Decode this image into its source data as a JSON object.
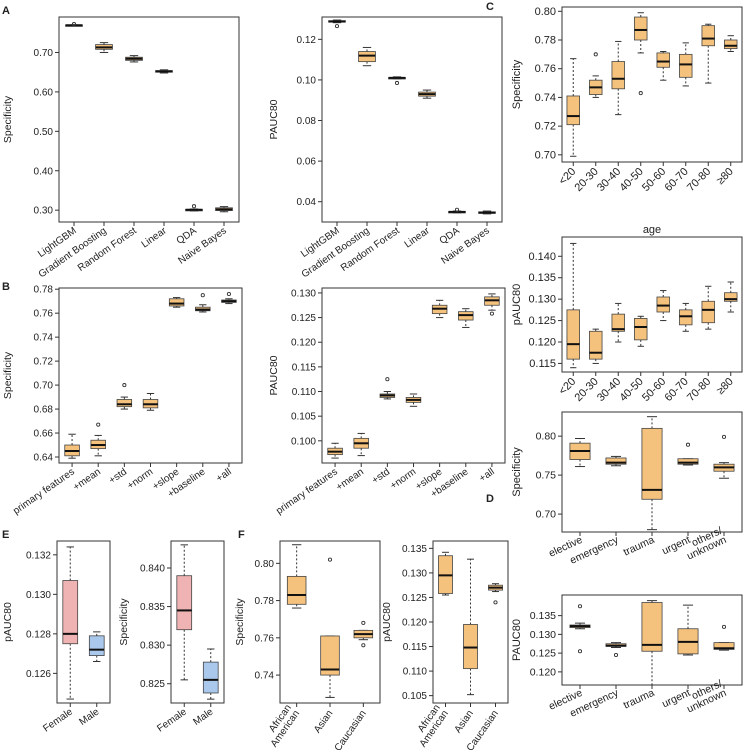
{
  "colors": {
    "box_orange": "#f5c27d",
    "box_pink": "#f0b3b3",
    "box_blue": "#a9c8ec",
    "frame": "#333333",
    "median": "#111111"
  },
  "panel_letters": {
    "A": "A",
    "B": "B",
    "C": "C",
    "D": "D",
    "E": "E",
    "F": "F"
  },
  "chart_data": [
    {
      "id": "A1",
      "type": "box",
      "panel": "A",
      "ylabel": "Specificity",
      "ylim": [
        0.27,
        0.79
      ],
      "yticks": [
        0.3,
        0.4,
        0.5,
        0.6,
        0.7
      ],
      "ytick_labels": [
        "0.30",
        "0.40",
        "0.50",
        "0.60",
        "0.70"
      ],
      "categories": [
        "LightGBM",
        "Gradient Boosting",
        "Random Forest",
        "Linear",
        "QDA",
        "Naive Bayes"
      ],
      "boxes": [
        {
          "min": 0.768,
          "q1": 0.768,
          "median": 0.769,
          "q3": 0.77,
          "max": 0.77,
          "outliers": [
            0.772
          ]
        },
        {
          "min": 0.7,
          "q1": 0.708,
          "median": 0.713,
          "q3": 0.72,
          "max": 0.725,
          "outliers": []
        },
        {
          "min": 0.676,
          "q1": 0.68,
          "median": 0.684,
          "q3": 0.688,
          "max": 0.692,
          "outliers": []
        },
        {
          "min": 0.648,
          "q1": 0.65,
          "median": 0.652,
          "q3": 0.654,
          "max": 0.656,
          "outliers": []
        },
        {
          "min": 0.298,
          "q1": 0.3,
          "median": 0.301,
          "q3": 0.302,
          "max": 0.303,
          "outliers": [
            0.31
          ]
        },
        {
          "min": 0.296,
          "q1": 0.299,
          "median": 0.302,
          "q3": 0.306,
          "max": 0.309,
          "outliers": []
        }
      ]
    },
    {
      "id": "A2",
      "type": "box",
      "panel": "A",
      "ylabel": "PAUC80",
      "ylim": [
        0.03,
        0.131
      ],
      "yticks": [
        0.04,
        0.06,
        0.08,
        0.1,
        0.12
      ],
      "ytick_labels": [
        "0.04",
        "0.06",
        "0.08",
        "0.10",
        "0.12"
      ],
      "categories": [
        "LightGBM",
        "Gradient Boosting",
        "Random Forest",
        "Linear",
        "QDA",
        "Naive Bayes"
      ],
      "boxes": [
        {
          "min": 0.1282,
          "q1": 0.1285,
          "median": 0.1288,
          "q3": 0.1292,
          "max": 0.1295,
          "outliers": [
            0.1265
          ]
        },
        {
          "min": 0.107,
          "q1": 0.109,
          "median": 0.112,
          "q3": 0.114,
          "max": 0.116,
          "outliers": []
        },
        {
          "min": 0.1005,
          "q1": 0.1008,
          "median": 0.101,
          "q3": 0.1012,
          "max": 0.1015,
          "outliers": [
            0.0985
          ]
        },
        {
          "min": 0.091,
          "q1": 0.092,
          "median": 0.093,
          "q3": 0.094,
          "max": 0.095,
          "outliers": []
        },
        {
          "min": 0.0345,
          "q1": 0.0348,
          "median": 0.035,
          "q3": 0.0352,
          "max": 0.0354,
          "outliers": [
            0.036
          ]
        },
        {
          "min": 0.034,
          "q1": 0.0343,
          "median": 0.0346,
          "q3": 0.035,
          "max": 0.0354,
          "outliers": []
        }
      ]
    },
    {
      "id": "B1",
      "type": "box",
      "panel": "B",
      "ylabel": "Specificity",
      "ylim": [
        0.635,
        0.781
      ],
      "yticks": [
        0.64,
        0.66,
        0.68,
        0.7,
        0.72,
        0.74,
        0.76,
        0.78
      ],
      "ytick_labels": [
        "0.64",
        "0.66",
        "0.68",
        "0.70",
        "0.72",
        "0.74",
        "0.76",
        "0.78"
      ],
      "categories": [
        "primary features",
        "+mean",
        "+std",
        "+norm",
        "+slope",
        "+baseline",
        "+all"
      ],
      "boxes": [
        {
          "min": 0.639,
          "q1": 0.641,
          "median": 0.645,
          "q3": 0.65,
          "max": 0.659,
          "outliers": []
        },
        {
          "min": 0.641,
          "q1": 0.647,
          "median": 0.65,
          "q3": 0.654,
          "max": 0.658,
          "outliers": [
            0.667
          ]
        },
        {
          "min": 0.68,
          "q1": 0.682,
          "median": 0.684,
          "q3": 0.688,
          "max": 0.69,
          "outliers": [
            0.7
          ]
        },
        {
          "min": 0.679,
          "q1": 0.681,
          "median": 0.684,
          "q3": 0.688,
          "max": 0.693,
          "outliers": []
        },
        {
          "min": 0.765,
          "q1": 0.766,
          "median": 0.768,
          "q3": 0.772,
          "max": 0.773,
          "outliers": []
        },
        {
          "min": 0.761,
          "q1": 0.762,
          "median": 0.763,
          "q3": 0.765,
          "max": 0.767,
          "outliers": [
            0.775
          ]
        },
        {
          "min": 0.768,
          "q1": 0.769,
          "median": 0.77,
          "q3": 0.771,
          "max": 0.772,
          "outliers": [
            0.776
          ]
        }
      ]
    },
    {
      "id": "B2",
      "type": "box",
      "panel": "B",
      "ylabel": "PAUC80",
      "ylim": [
        0.0955,
        0.131
      ],
      "yticks": [
        0.1,
        0.105,
        0.11,
        0.115,
        0.12,
        0.125,
        0.13
      ],
      "ytick_labels": [
        "0.100",
        "0.105",
        "0.110",
        "0.115",
        "0.120",
        "0.125",
        "0.130"
      ],
      "categories": [
        "primary features",
        "+mean",
        "+std",
        "+norm",
        "+slope",
        "+baseline",
        "+all"
      ],
      "boxes": [
        {
          "min": 0.0965,
          "q1": 0.0972,
          "median": 0.0978,
          "q3": 0.0985,
          "max": 0.0995,
          "outliers": []
        },
        {
          "min": 0.097,
          "q1": 0.0985,
          "median": 0.0995,
          "q3": 0.1005,
          "max": 0.1015,
          "outliers": []
        },
        {
          "min": 0.1085,
          "q1": 0.1088,
          "median": 0.1092,
          "q3": 0.1095,
          "max": 0.11,
          "outliers": [
            0.1125
          ]
        },
        {
          "min": 0.107,
          "q1": 0.1078,
          "median": 0.1083,
          "q3": 0.1088,
          "max": 0.1095,
          "outliers": []
        },
        {
          "min": 0.125,
          "q1": 0.1258,
          "median": 0.1268,
          "q3": 0.1275,
          "max": 0.1285,
          "outliers": []
        },
        {
          "min": 0.123,
          "q1": 0.1245,
          "median": 0.1255,
          "q3": 0.1262,
          "max": 0.1268,
          "outliers": []
        },
        {
          "min": 0.1265,
          "q1": 0.1275,
          "median": 0.1285,
          "q3": 0.1292,
          "max": 0.1298,
          "outliers": [
            0.1258
          ]
        }
      ]
    },
    {
      "id": "C1",
      "type": "box",
      "panel": "C",
      "ylabel": "Specificity",
      "xlabel": "age",
      "ylim": [
        0.695,
        0.803
      ],
      "yticks": [
        0.7,
        0.72,
        0.74,
        0.76,
        0.78,
        0.8
      ],
      "ytick_labels": [
        "0.70",
        "0.72",
        "0.74",
        "0.76",
        "0.78",
        "0.80"
      ],
      "categories": [
        "<20",
        "20-30",
        "30-40",
        "40-50",
        "50-60",
        "60-70",
        "70-80",
        "≥80"
      ],
      "boxes": [
        {
          "min": 0.699,
          "q1": 0.721,
          "median": 0.727,
          "q3": 0.741,
          "max": 0.767,
          "outliers": []
        },
        {
          "min": 0.74,
          "q1": 0.742,
          "median": 0.747,
          "q3": 0.752,
          "max": 0.755,
          "outliers": [
            0.77
          ]
        },
        {
          "min": 0.728,
          "q1": 0.746,
          "median": 0.753,
          "q3": 0.765,
          "max": 0.779,
          "outliers": []
        },
        {
          "min": 0.771,
          "q1": 0.78,
          "median": 0.787,
          "q3": 0.796,
          "max": 0.799,
          "outliers": [
            0.743
          ]
        },
        {
          "min": 0.752,
          "q1": 0.761,
          "median": 0.765,
          "q3": 0.771,
          "max": 0.772,
          "outliers": []
        },
        {
          "min": 0.748,
          "q1": 0.754,
          "median": 0.763,
          "q3": 0.77,
          "max": 0.778,
          "outliers": []
        },
        {
          "min": 0.75,
          "q1": 0.776,
          "median": 0.781,
          "q3": 0.79,
          "max": 0.791,
          "outliers": []
        },
        {
          "min": 0.772,
          "q1": 0.774,
          "median": 0.776,
          "q3": 0.78,
          "max": 0.783,
          "outliers": []
        }
      ]
    },
    {
      "id": "C2",
      "type": "box",
      "panel": "C",
      "ylabel": "pAUC80",
      "xlabel": "age",
      "ylim": [
        0.113,
        0.1445
      ],
      "yticks": [
        0.115,
        0.12,
        0.125,
        0.13,
        0.135,
        0.14
      ],
      "ytick_labels": [
        "0.115",
        "0.120",
        "0.125",
        "0.130",
        "0.135",
        "0.140"
      ],
      "categories": [
        "<20",
        "20-30",
        "30-40",
        "40-50",
        "50-60",
        "60-70",
        "70-80",
        "≥80"
      ],
      "boxes": [
        {
          "min": 0.114,
          "q1": 0.116,
          "median": 0.1195,
          "q3": 0.1275,
          "max": 0.143,
          "outliers": []
        },
        {
          "min": 0.115,
          "q1": 0.116,
          "median": 0.1175,
          "q3": 0.1225,
          "max": 0.123,
          "outliers": []
        },
        {
          "min": 0.12,
          "q1": 0.1225,
          "median": 0.123,
          "q3": 0.1265,
          "max": 0.129,
          "outliers": []
        },
        {
          "min": 0.119,
          "q1": 0.1205,
          "median": 0.1235,
          "q3": 0.1255,
          "max": 0.126,
          "outliers": []
        },
        {
          "min": 0.125,
          "q1": 0.127,
          "median": 0.1285,
          "q3": 0.1305,
          "max": 0.132,
          "outliers": []
        },
        {
          "min": 0.1225,
          "q1": 0.124,
          "median": 0.126,
          "q3": 0.1275,
          "max": 0.129,
          "outliers": []
        },
        {
          "min": 0.123,
          "q1": 0.1245,
          "median": 0.1275,
          "q3": 0.1295,
          "max": 0.133,
          "outliers": []
        },
        {
          "min": 0.127,
          "q1": 0.1295,
          "median": 0.13,
          "q3": 0.1315,
          "max": 0.134,
          "outliers": []
        }
      ]
    },
    {
      "id": "D1",
      "type": "box",
      "panel": "D",
      "ylabel": "Specificity",
      "ylim": [
        0.677,
        0.831
      ],
      "yticks": [
        0.7,
        0.75,
        0.8
      ],
      "ytick_labels": [
        "0.70",
        "0.75",
        "0.80"
      ],
      "categories": [
        "elective",
        "emergency",
        "trauma",
        "urgent",
        "others/\nunknown"
      ],
      "boxes": [
        {
          "min": 0.761,
          "q1": 0.77,
          "median": 0.781,
          "q3": 0.791,
          "max": 0.797,
          "outliers": []
        },
        {
          "min": 0.762,
          "q1": 0.764,
          "median": 0.766,
          "q3": 0.772,
          "max": 0.774,
          "outliers": []
        },
        {
          "min": 0.68,
          "q1": 0.719,
          "median": 0.731,
          "q3": 0.81,
          "max": 0.825,
          "outliers": []
        },
        {
          "min": 0.763,
          "q1": 0.764,
          "median": 0.766,
          "q3": 0.771,
          "max": 0.771,
          "outliers": [
            0.789
          ]
        },
        {
          "min": 0.746,
          "q1": 0.755,
          "median": 0.76,
          "q3": 0.764,
          "max": 0.766,
          "outliers": [
            0.799
          ]
        }
      ]
    },
    {
      "id": "D2",
      "type": "box",
      "panel": "D",
      "ylabel": "PAUC80",
      "ylim": [
        0.1165,
        0.1405
      ],
      "yticks": [
        0.12,
        0.125,
        0.13,
        0.135
      ],
      "ytick_labels": [
        "0.120",
        "0.125",
        "0.130",
        "0.135"
      ],
      "categories": [
        "elective",
        "emergency",
        "trauma",
        "urgent",
        "others/\nunknown"
      ],
      "boxes": [
        {
          "min": 0.1315,
          "q1": 0.1318,
          "median": 0.1322,
          "q3": 0.1325,
          "max": 0.133,
          "outliers": [
            0.1375,
            0.1255
          ]
        },
        {
          "min": 0.1265,
          "q1": 0.1268,
          "median": 0.127,
          "q3": 0.1275,
          "max": 0.1278,
          "outliers": [
            0.1245
          ]
        },
        {
          "min": 0.1165,
          "q1": 0.1255,
          "median": 0.1272,
          "q3": 0.1385,
          "max": 0.139,
          "outliers": []
        },
        {
          "min": 0.1245,
          "q1": 0.1248,
          "median": 0.128,
          "q3": 0.1315,
          "max": 0.1378,
          "outliers": []
        },
        {
          "min": 0.1258,
          "q1": 0.126,
          "median": 0.1263,
          "q3": 0.1278,
          "max": 0.1278,
          "outliers": [
            0.132
          ]
        }
      ]
    },
    {
      "id": "E1",
      "type": "box",
      "panel": "E",
      "ylabel": "pAUC80",
      "ylim": [
        0.1245,
        0.1327
      ],
      "yticks": [
        0.126,
        0.128,
        0.13,
        0.132
      ],
      "ytick_labels": [
        "0.126",
        "0.128",
        "0.130",
        "0.132"
      ],
      "categories": [
        "Female",
        "Male"
      ],
      "box_colors": [
        "pink",
        "blue"
      ],
      "boxes": [
        {
          "min": 0.1247,
          "q1": 0.1275,
          "median": 0.128,
          "q3": 0.1307,
          "max": 0.1324,
          "outliers": []
        },
        {
          "min": 0.1266,
          "q1": 0.1269,
          "median": 0.1272,
          "q3": 0.1279,
          "max": 0.1281,
          "outliers": []
        }
      ]
    },
    {
      "id": "E2",
      "type": "box",
      "panel": "E",
      "ylabel": "Specificity",
      "ylim": [
        0.8225,
        0.8435
      ],
      "yticks": [
        0.825,
        0.83,
        0.835,
        0.84
      ],
      "ytick_labels": [
        "0.825",
        "0.830",
        "0.835",
        "0.840"
      ],
      "categories": [
        "Female",
        "Male"
      ],
      "box_colors": [
        "pink",
        "blue"
      ],
      "boxes": [
        {
          "min": 0.8255,
          "q1": 0.832,
          "median": 0.8345,
          "q3": 0.839,
          "max": 0.843,
          "outliers": []
        },
        {
          "min": 0.823,
          "q1": 0.8238,
          "median": 0.8255,
          "q3": 0.8278,
          "max": 0.8295,
          "outliers": []
        }
      ]
    },
    {
      "id": "F1",
      "type": "box",
      "panel": "F",
      "ylabel": "Specificity",
      "ylim": [
        0.725,
        0.812
      ],
      "yticks": [
        0.74,
        0.76,
        0.78,
        0.8
      ],
      "ytick_labels": [
        "0.74",
        "0.76",
        "0.78",
        "0.80"
      ],
      "categories": [
        "African\nAmerican",
        "Asian",
        "Caucasian"
      ],
      "boxes": [
        {
          "min": 0.776,
          "q1": 0.778,
          "median": 0.783,
          "q3": 0.793,
          "max": 0.81,
          "outliers": []
        },
        {
          "min": 0.728,
          "q1": 0.74,
          "median": 0.743,
          "q3": 0.761,
          "max": 0.761,
          "outliers": [
            0.802
          ]
        },
        {
          "min": 0.759,
          "q1": 0.76,
          "median": 0.762,
          "q3": 0.764,
          "max": 0.764,
          "outliers": [
            0.768,
            0.756
          ]
        }
      ]
    },
    {
      "id": "F2",
      "type": "box",
      "panel": "F",
      "ylabel": "pAUC80",
      "ylim": [
        0.1035,
        0.1365
      ],
      "yticks": [
        0.105,
        0.11,
        0.115,
        0.12,
        0.125,
        0.13,
        0.135
      ],
      "ytick_labels": [
        "0.105",
        "0.110",
        "0.115",
        "0.120",
        "0.125",
        "0.130",
        "0.135"
      ],
      "categories": [
        "African\nAmerican",
        "Asian",
        "Caucasian"
      ],
      "boxes": [
        {
          "min": 0.1255,
          "q1": 0.1258,
          "median": 0.1295,
          "q3": 0.1335,
          "max": 0.1342,
          "outliers": []
        },
        {
          "min": 0.1052,
          "q1": 0.1105,
          "median": 0.1148,
          "q3": 0.1195,
          "max": 0.1328,
          "outliers": []
        },
        {
          "min": 0.1262,
          "q1": 0.1265,
          "median": 0.127,
          "q3": 0.1275,
          "max": 0.1278,
          "outliers": [
            0.124
          ]
        }
      ]
    }
  ]
}
